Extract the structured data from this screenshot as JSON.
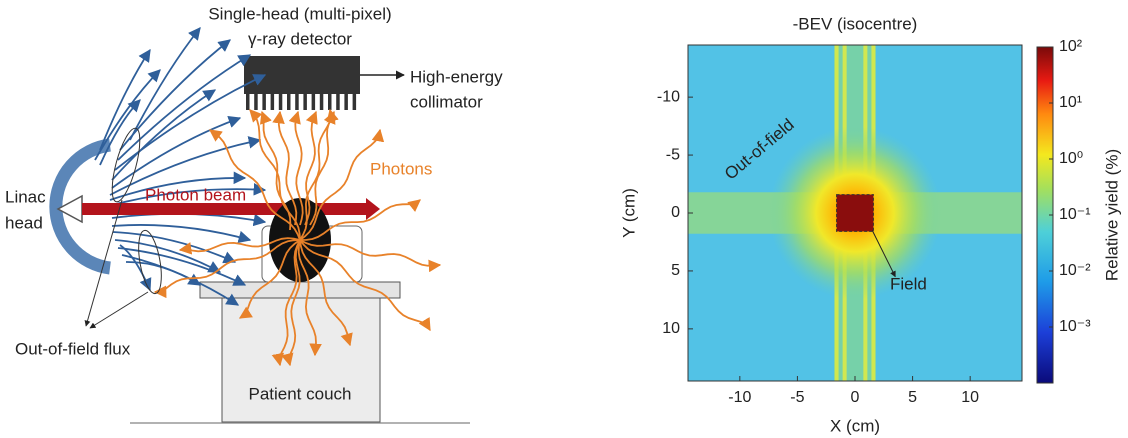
{
  "diagram": {
    "detector_label": [
      "Single-head (multi-pixel)",
      "γ-ray detector"
    ],
    "collimator_label": [
      "High-energy",
      "collimator"
    ],
    "photons_label": "Photons",
    "beam_label": "Photon beam",
    "linac_label": [
      "Linac",
      "head"
    ],
    "flux_label": "Out-of-field flux",
    "couch_label": "Patient couch"
  },
  "chart_data": {
    "type": "heatmap",
    "title": "-BEV (isocentre)",
    "x_label": "X (cm)",
    "y_label": "Y (cm)",
    "xlim": [
      -14.5,
      14.5
    ],
    "xticks": [
      -10,
      -5,
      0,
      5,
      10
    ],
    "ylim": [
      -14.5,
      14.5
    ],
    "yticks": [
      -10,
      -5,
      0,
      5,
      10
    ],
    "y_inverted": true,
    "annotations": [
      "Out-of-field",
      "Field"
    ],
    "colorbar": {
      "label": "Relative yield (%)",
      "log": true,
      "clim": [
        0.0001,
        100
      ],
      "ticks": [
        {
          "value": 100,
          "label": "10²"
        },
        {
          "value": 10,
          "label": "10¹"
        },
        {
          "value": 1,
          "label": "10⁰"
        },
        {
          "value": 0.1,
          "label": "10⁻¹"
        },
        {
          "value": 0.01,
          "label": "10⁻²"
        },
        {
          "value": 0.001,
          "label": "10⁻³"
        }
      ]
    }
  }
}
